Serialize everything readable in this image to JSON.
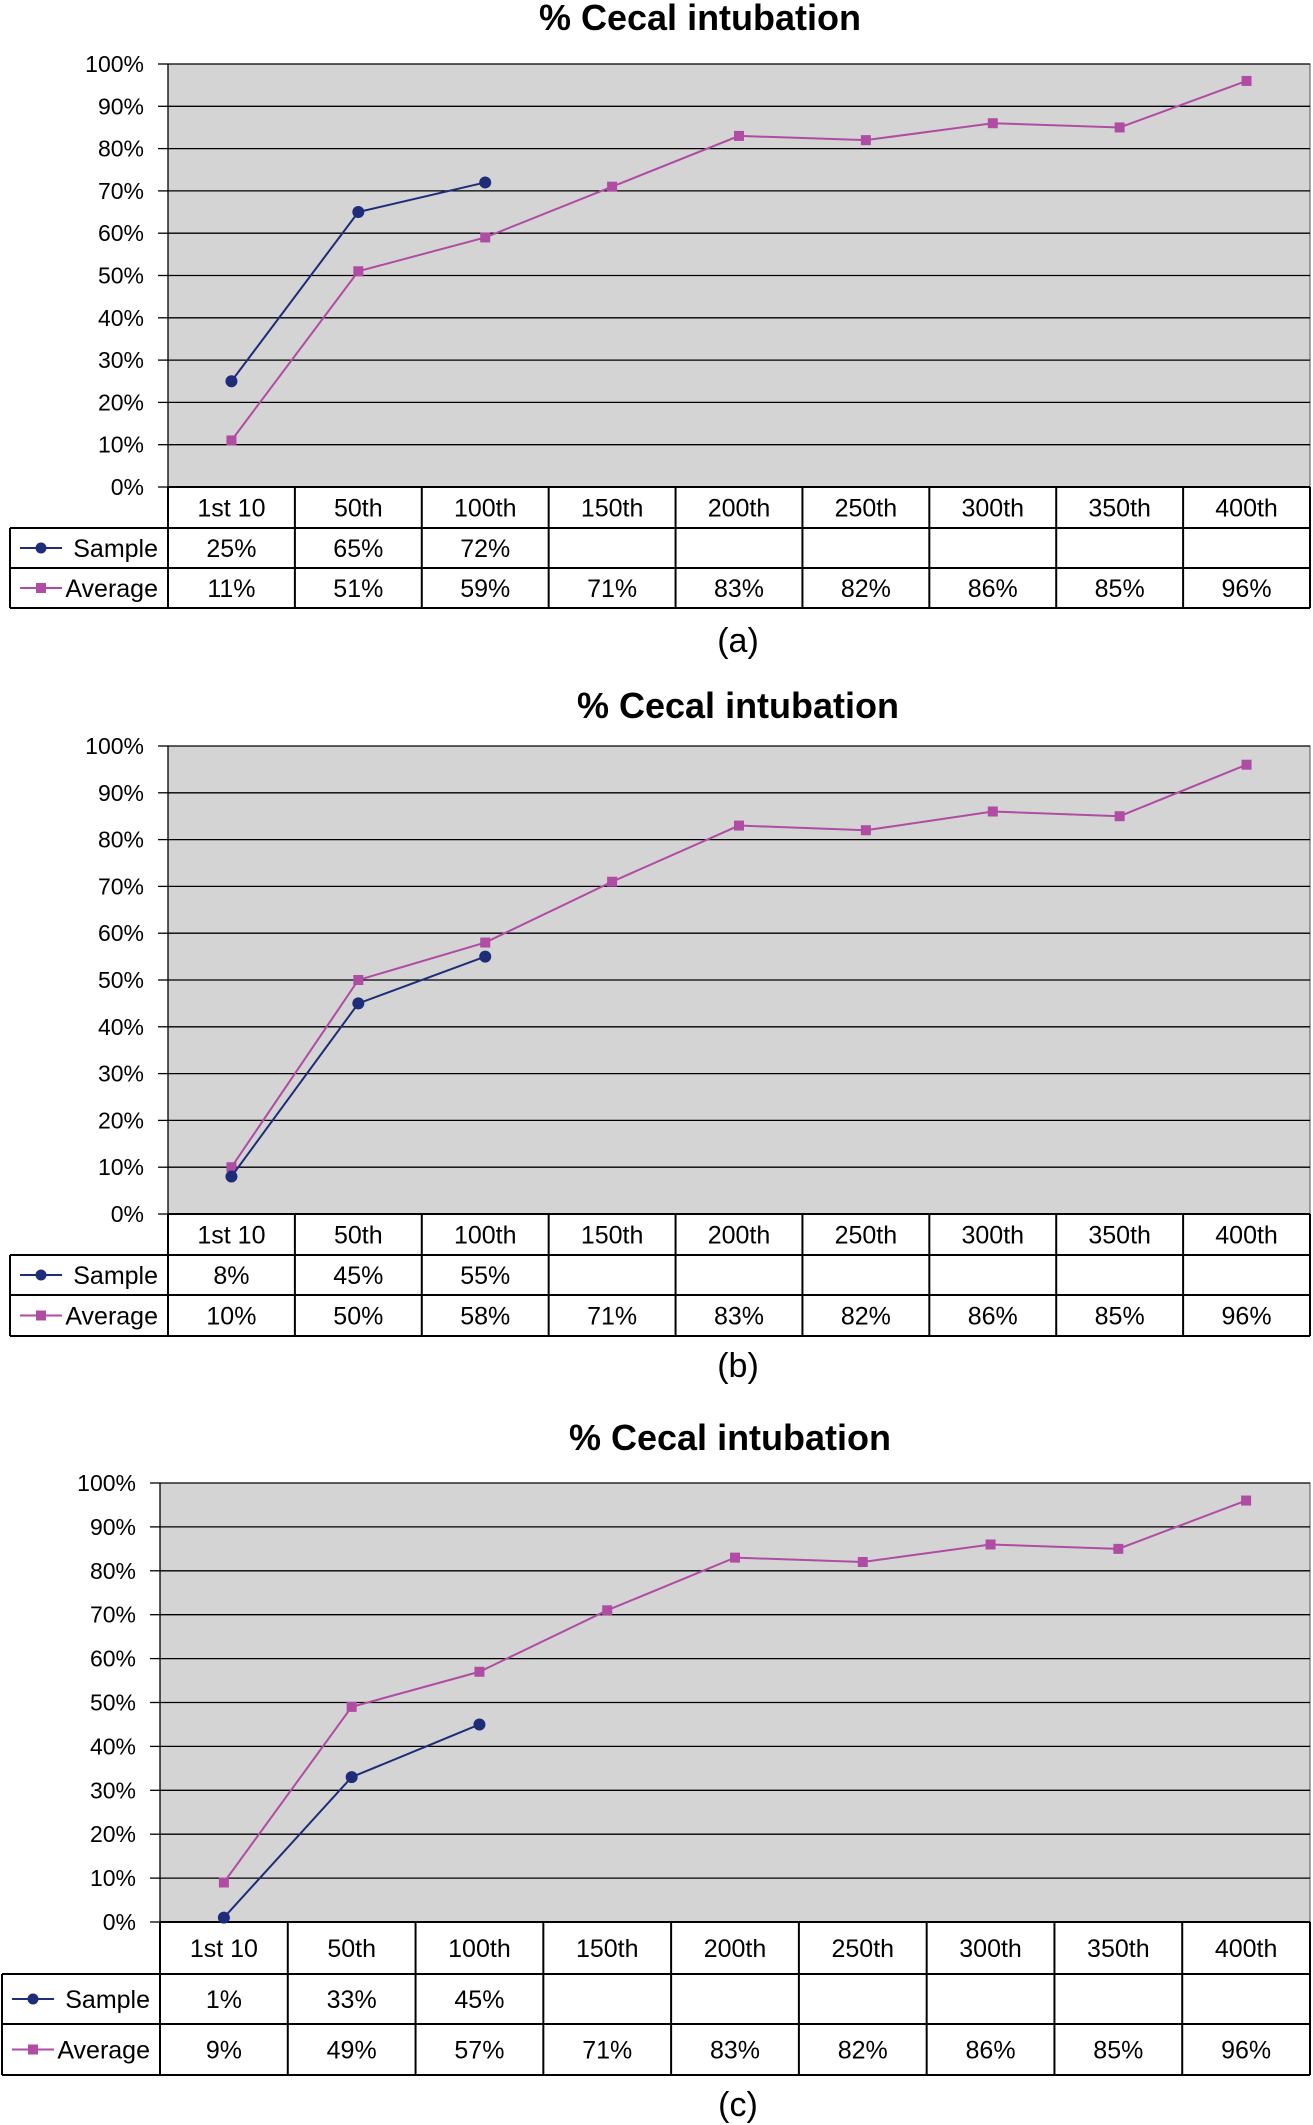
{
  "chart_data": [
    {
      "type": "line",
      "title": "% Cecal intubation",
      "panel_label": "(a)",
      "categories": [
        "1st 10",
        "50th",
        "100th",
        "150th",
        "200th",
        "250th",
        "300th",
        "350th",
        "400th"
      ],
      "yticks": [
        "0%",
        "10%",
        "20%",
        "30%",
        "40%",
        "50%",
        "60%",
        "70%",
        "80%",
        "90%",
        "100%"
      ],
      "ylim": [
        0,
        100
      ],
      "grid": true,
      "series": [
        {
          "name": "Sample",
          "color": "#1f2c7a",
          "marker": "circle",
          "values": [
            25,
            65,
            72,
            null,
            null,
            null,
            null,
            null,
            null
          ],
          "labels": [
            "25%",
            "65%",
            "72%",
            "",
            "",
            "",
            "",
            "",
            ""
          ]
        },
        {
          "name": "Average",
          "color": "#b04ca3",
          "marker": "square",
          "values": [
            11,
            51,
            59,
            71,
            83,
            82,
            86,
            85,
            96
          ],
          "labels": [
            "11%",
            "51%",
            "59%",
            "71%",
            "83%",
            "82%",
            "86%",
            "85%",
            "96%"
          ]
        }
      ]
    },
    {
      "type": "line",
      "title": "% Cecal intubation",
      "panel_label": "(b)",
      "categories": [
        "1st 10",
        "50th",
        "100th",
        "150th",
        "200th",
        "250th",
        "300th",
        "350th",
        "400th"
      ],
      "yticks": [
        "0%",
        "10%",
        "20%",
        "30%",
        "40%",
        "50%",
        "60%",
        "70%",
        "80%",
        "90%",
        "100%"
      ],
      "ylim": [
        0,
        100
      ],
      "grid": true,
      "series": [
        {
          "name": "Sample",
          "color": "#1f2c7a",
          "marker": "circle",
          "values": [
            8,
            45,
            55,
            null,
            null,
            null,
            null,
            null,
            null
          ],
          "labels": [
            "8%",
            "45%",
            "55%",
            "",
            "",
            "",
            "",
            "",
            ""
          ]
        },
        {
          "name": "Average",
          "color": "#b04ca3",
          "marker": "square",
          "values": [
            10,
            50,
            58,
            71,
            83,
            82,
            86,
            85,
            96
          ],
          "labels": [
            "10%",
            "50%",
            "58%",
            "71%",
            "83%",
            "82%",
            "86%",
            "85%",
            "96%"
          ]
        }
      ]
    },
    {
      "type": "line",
      "title": "% Cecal intubation",
      "panel_label": "(c)",
      "categories": [
        "1st 10",
        "50th",
        "100th",
        "150th",
        "200th",
        "250th",
        "300th",
        "350th",
        "400th"
      ],
      "yticks": [
        "0%",
        "10%",
        "20%",
        "30%",
        "40%",
        "50%",
        "60%",
        "70%",
        "80%",
        "90%",
        "100%"
      ],
      "ylim": [
        0,
        100
      ],
      "grid": true,
      "series": [
        {
          "name": "Sample",
          "color": "#1f2c7a",
          "marker": "circle",
          "values": [
            1,
            33,
            45,
            null,
            null,
            null,
            null,
            null,
            null
          ],
          "labels": [
            "1%",
            "33%",
            "45%",
            "",
            "",
            "",
            "",
            "",
            ""
          ]
        },
        {
          "name": "Average",
          "color": "#b04ca3",
          "marker": "square",
          "values": [
            9,
            49,
            57,
            71,
            83,
            82,
            86,
            85,
            96
          ],
          "labels": [
            "9%",
            "49%",
            "57%",
            "71%",
            "83%",
            "82%",
            "86%",
            "85%",
            "96%"
          ]
        }
      ]
    }
  ],
  "colors": {
    "plot_background": "#d4d4d4",
    "gridline": "#000000",
    "table_border": "#000000"
  }
}
